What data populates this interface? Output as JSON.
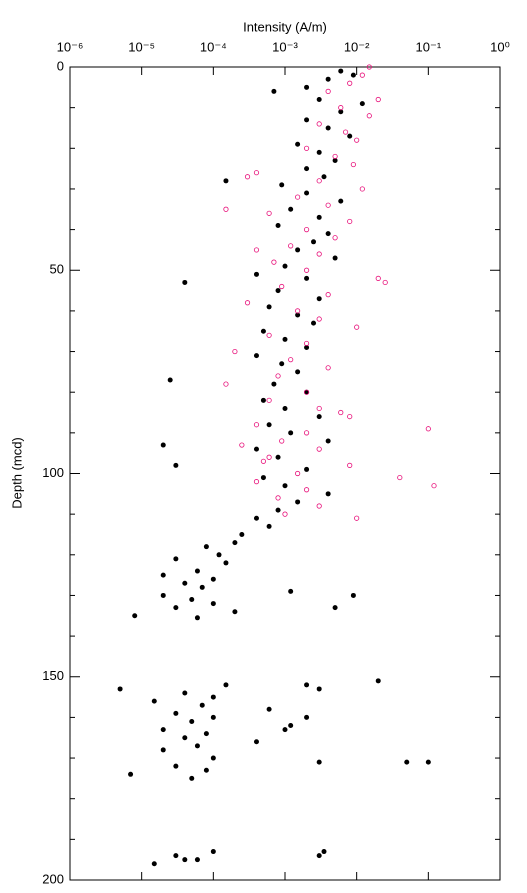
{
  "chart_data": {
    "type": "scatter",
    "xlabel": "Intensity (A/m)",
    "ylabel": "Depth (mcd)",
    "xscale": "log",
    "yinverted": true,
    "xlim": [
      1e-06,
      1
    ],
    "ylim": [
      0,
      200
    ],
    "xticks": [
      {
        "value": 1e-06,
        "label": "10⁻⁶"
      },
      {
        "value": 1e-05,
        "label": "10⁻⁵"
      },
      {
        "value": 0.0001,
        "label": "10⁻⁴"
      },
      {
        "value": 0.001,
        "label": "10⁻³"
      },
      {
        "value": 0.01,
        "label": "10⁻²"
      },
      {
        "value": 0.1,
        "label": "10⁻¹"
      },
      {
        "value": 1,
        "label": "10⁰"
      }
    ],
    "yticks": [
      0,
      50,
      100,
      150,
      200
    ],
    "yminorticks": [
      10,
      20,
      30,
      40,
      60,
      70,
      80,
      90,
      110,
      120,
      130,
      140,
      160,
      170,
      180,
      190
    ],
    "series": [
      {
        "color": "#000000",
        "marker": "filled",
        "y": [
          1,
          2,
          3,
          5,
          6,
          8,
          9,
          11,
          13,
          15,
          17,
          19,
          21,
          23,
          25,
          27,
          28,
          29,
          31,
          33,
          35,
          37,
          39,
          41,
          43,
          45,
          47,
          49,
          51,
          52,
          53,
          55,
          57,
          59,
          61,
          63,
          65,
          67,
          69,
          71,
          73,
          75,
          77,
          78,
          80,
          82,
          84,
          86,
          88,
          90,
          92,
          93,
          94,
          96,
          98,
          99,
          101,
          103,
          105,
          107,
          109,
          111,
          113,
          115,
          117,
          118,
          120,
          121,
          122,
          124,
          125,
          126,
          127,
          128,
          129,
          130,
          131,
          132,
          133,
          134,
          135,
          135.5,
          130,
          133,
          152,
          152,
          153,
          154,
          155,
          156,
          157,
          158,
          159,
          160,
          161,
          162,
          163,
          164,
          165,
          166,
          167,
          168,
          170,
          171,
          171,
          171,
          172,
          173,
          174,
          175,
          151,
          193,
          194,
          195,
          196,
          194,
          193,
          195,
          153,
          160,
          163
        ],
        "x": [
          0.006,
          0.009,
          0.004,
          0.002,
          0.0007,
          0.003,
          0.012,
          0.006,
          0.002,
          0.004,
          0.008,
          0.0015,
          0.003,
          0.005,
          0.002,
          0.0035,
          0.00015,
          0.0009,
          0.002,
          0.006,
          0.0012,
          0.003,
          0.0008,
          0.004,
          0.0025,
          0.0015,
          0.005,
          0.001,
          0.0004,
          0.002,
          4e-05,
          0.0008,
          0.003,
          0.0006,
          0.0015,
          0.0025,
          0.0005,
          0.001,
          0.002,
          0.0004,
          0.0009,
          0.0015,
          2.5e-05,
          0.0007,
          0.002,
          0.0005,
          0.001,
          0.003,
          0.0006,
          0.0012,
          0.004,
          2e-05,
          0.0004,
          0.0008,
          3e-05,
          0.002,
          0.0005,
          0.001,
          0.004,
          0.0015,
          0.0008,
          0.0004,
          0.0006,
          0.00025,
          0.0002,
          8e-05,
          0.00012,
          3e-05,
          0.00015,
          6e-05,
          2e-05,
          0.0001,
          4e-05,
          7e-05,
          0.0012,
          2e-05,
          5e-05,
          0.0001,
          3e-05,
          0.0002,
          8e-06,
          6e-05,
          0.009,
          0.005,
          0.00015,
          0.002,
          5e-06,
          4e-05,
          0.0001,
          1.5e-05,
          7e-05,
          0.0006,
          3e-05,
          0.0001,
          5e-05,
          0.0012,
          2e-05,
          8e-05,
          4e-05,
          0.0004,
          6e-05,
          2e-05,
          0.0001,
          0.003,
          0.05,
          0.1,
          3e-05,
          8e-05,
          7e-06,
          5e-05,
          0.02,
          0.0001,
          3e-05,
          6e-05,
          1.5e-05,
          0.003,
          0.0035,
          4e-05,
          0.003,
          0.002,
          0.001
        ]
      },
      {
        "color": "#e8107a",
        "marker": "open",
        "y": [
          0,
          2,
          4,
          6,
          8,
          10,
          12,
          14,
          16,
          18,
          20,
          22,
          24,
          26,
          28,
          30,
          32,
          34,
          36,
          38,
          40,
          42,
          44,
          46,
          48,
          50,
          52,
          54,
          56,
          58,
          60,
          62,
          64,
          66,
          68,
          70,
          72,
          74,
          76,
          78,
          80,
          82,
          84,
          86,
          88,
          89,
          90,
          92,
          93,
          94,
          96,
          98,
          100,
          101,
          102,
          103,
          104,
          106,
          108,
          110,
          111,
          27,
          35,
          45,
          53,
          85,
          97
        ],
        "x": [
          0.015,
          0.012,
          0.008,
          0.004,
          0.02,
          0.006,
          0.015,
          0.003,
          0.007,
          0.01,
          0.002,
          0.005,
          0.009,
          0.0004,
          0.003,
          0.012,
          0.0015,
          0.004,
          0.0006,
          0.008,
          0.002,
          0.005,
          0.0012,
          0.003,
          0.0007,
          0.002,
          0.02,
          0.0009,
          0.004,
          0.0003,
          0.0015,
          0.003,
          0.01,
          0.0006,
          0.002,
          0.0002,
          0.0012,
          0.004,
          0.0008,
          0.00015,
          0.002,
          0.0006,
          0.003,
          0.008,
          0.0004,
          0.1,
          0.002,
          0.0009,
          0.00025,
          0.003,
          0.0006,
          0.008,
          0.0015,
          0.04,
          0.0004,
          0.12,
          0.002,
          0.0008,
          0.003,
          0.001,
          0.01,
          0.0003,
          0.00015,
          0.0004,
          0.025,
          0.006,
          0.0005
        ]
      }
    ]
  }
}
